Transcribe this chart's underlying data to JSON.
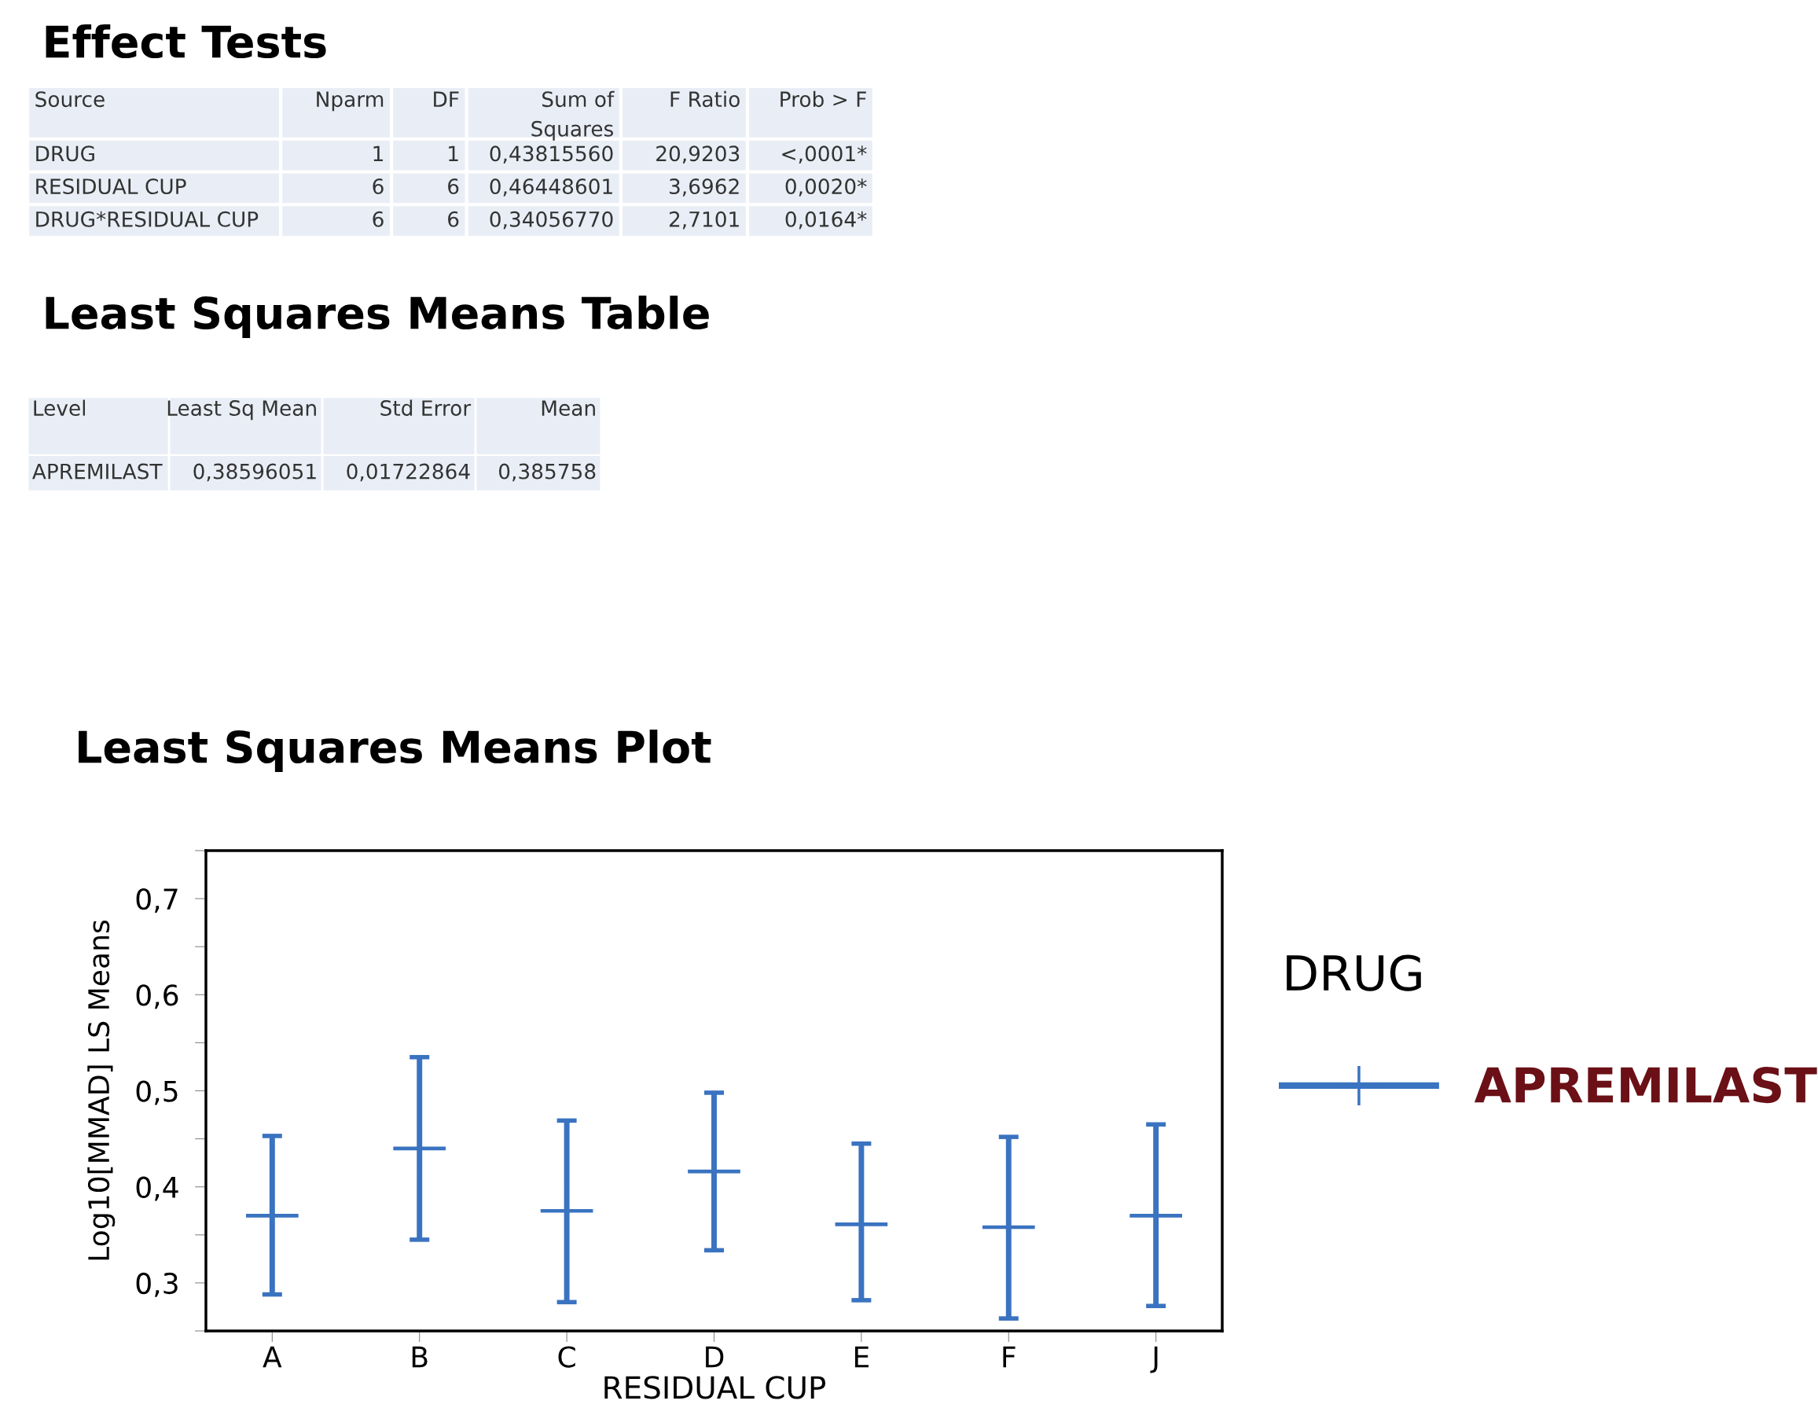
{
  "chart_data": [
    {
      "type": "other",
      "title": "Effect Tests",
      "categories": [
        "Source",
        "Nparm",
        "DF",
        "Sum of\nSquares",
        "F Ratio",
        "Prob > F"
      ],
      "y_categories": [
        "DRUG",
        "RESIDUAL CUP",
        "DRUG*RESIDUAL CUP"
      ],
      "cell_labels": [
        [
          "1",
          "1",
          "0,43815560",
          "20,9203",
          "<,0001*"
        ],
        [
          "6",
          "6",
          "0,46448601",
          "3,6962",
          "0,0020*"
        ],
        [
          "6",
          "6",
          "0,34056770",
          "2,7101",
          "0,0164*"
        ]
      ]
    },
    {
      "type": "other",
      "title": "Least Squares Means Table",
      "categories": [
        "Level",
        "Least Sq Mean",
        "Std Error",
        "Mean"
      ],
      "y_categories": [
        "APREMILAST"
      ],
      "cell_labels": [
        [
          "0,38596051",
          "0,01722864",
          "0,385758"
        ]
      ]
    },
    {
      "type": "scatter",
      "title": "Least Squares Means Plot",
      "xlabel": "RESIDUAL CUP",
      "ylabel": "Log10[MMAD] LS Means",
      "categories": [
        "A",
        "B",
        "C",
        "D",
        "E",
        "F",
        "J"
      ],
      "series": [
        {
          "name": "APREMILAST",
          "color": "#3a73c0",
          "values": [
            0.37,
            0.44,
            0.375,
            0.416,
            0.361,
            0.358,
            0.37
          ],
          "errors": [
            [
              0.288,
              0.453
            ],
            [
              0.345,
              0.535
            ],
            [
              0.28,
              0.469
            ],
            [
              0.334,
              0.498
            ],
            [
              0.282,
              0.445
            ],
            [
              0.263,
              0.452
            ],
            [
              0.276,
              0.465
            ]
          ]
        }
      ],
      "marker": "cross",
      "legend": "right",
      "legend_title": "DRUG",
      "grid": false,
      "ylim": [
        0.25,
        0.75
      ],
      "yticks": [
        {
          "value": 0.25,
          "label": null
        },
        {
          "value": 0.3,
          "label": "0,3"
        },
        {
          "value": 0.35,
          "label": null
        },
        {
          "value": 0.4,
          "label": "0,4"
        },
        {
          "value": 0.45,
          "label": null
        },
        {
          "value": 0.5,
          "label": "0,5"
        },
        {
          "value": 0.55,
          "label": null
        },
        {
          "value": 0.6,
          "label": "0,6"
        },
        {
          "value": 0.65,
          "label": null
        },
        {
          "value": 0.7,
          "label": "0,7"
        },
        {
          "value": 0.75,
          "label": null
        }
      ]
    }
  ]
}
